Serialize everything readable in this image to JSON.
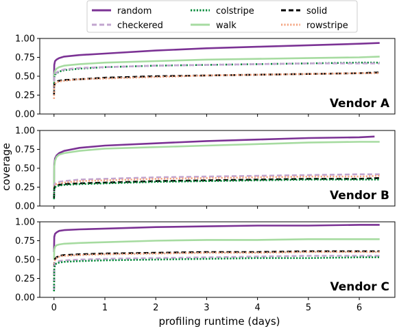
{
  "chart_data": {
    "type": "line",
    "xlabel": "profiling runtime (days)",
    "ylabel": "coverage",
    "xlim": [
      -0.28,
      6.7
    ],
    "ylim": [
      0.0,
      1.0
    ],
    "xticks": [
      0,
      1,
      2,
      3,
      4,
      5,
      6
    ],
    "yticks": [
      0.0,
      0.25,
      0.5,
      0.75,
      1.0
    ],
    "xtick_labels": [
      "0",
      "1",
      "2",
      "3",
      "4",
      "5",
      "6"
    ],
    "ytick_labels": [
      "0.00",
      "0.25",
      "0.50",
      "0.75",
      "1.00"
    ],
    "grid": false,
    "legend": {
      "placement": "top-center",
      "columns": 3,
      "entries": [
        {
          "key": "random",
          "label": "random",
          "color": "#7b3294",
          "dash": "solid"
        },
        {
          "key": "checkered",
          "label": "checkered",
          "color": "#c2a5cf",
          "dash": "dashed"
        },
        {
          "key": "colstripe",
          "label": "colstripe",
          "color": "#008837",
          "dash": "dotted"
        },
        {
          "key": "walk",
          "label": "walk",
          "color": "#a6dba0",
          "dash": "solid"
        },
        {
          "key": "solid",
          "label": "solid",
          "color": "#000000",
          "dash": "dashed"
        },
        {
          "key": "rowstripe",
          "label": "rowstripe",
          "color": "#f4a582",
          "dash": "dotted"
        }
      ]
    },
    "panels": [
      {
        "title": "Vendor A",
        "series": [
          {
            "key": "random",
            "x": [
              0,
              0.005,
              0.02,
              0.05,
              0.1,
              0.2,
              0.5,
              1,
              2,
              3,
              4,
              5,
              6,
              6.4
            ],
            "y": [
              0.45,
              0.65,
              0.7,
              0.72,
              0.74,
              0.76,
              0.78,
              0.8,
              0.84,
              0.87,
              0.89,
              0.91,
              0.93,
              0.94
            ]
          },
          {
            "key": "walk",
            "x": [
              0,
              0.005,
              0.02,
              0.05,
              0.1,
              0.2,
              0.5,
              1,
              2,
              3,
              4,
              5,
              6,
              6.4
            ],
            "y": [
              0.35,
              0.52,
              0.57,
              0.6,
              0.62,
              0.64,
              0.66,
              0.68,
              0.7,
              0.72,
              0.73,
              0.74,
              0.75,
              0.76
            ]
          },
          {
            "key": "colstripe",
            "x": [
              0,
              0.005,
              0.02,
              0.05,
              0.1,
              0.2,
              0.5,
              1,
              2,
              3,
              4,
              5,
              6,
              6.4
            ],
            "y": [
              0.32,
              0.48,
              0.52,
              0.54,
              0.56,
              0.58,
              0.6,
              0.62,
              0.64,
              0.65,
              0.66,
              0.67,
              0.68,
              0.68
            ]
          },
          {
            "key": "checkered",
            "x": [
              0,
              0.005,
              0.02,
              0.05,
              0.1,
              0.2,
              0.5,
              1,
              2,
              3,
              4,
              5,
              6,
              6.4
            ],
            "y": [
              0.33,
              0.49,
              0.53,
              0.55,
              0.57,
              0.59,
              0.61,
              0.62,
              0.64,
              0.65,
              0.66,
              0.67,
              0.67,
              0.67
            ]
          },
          {
            "key": "solid",
            "x": [
              0,
              0.005,
              0.02,
              0.05,
              0.1,
              0.2,
              0.5,
              1,
              2,
              3,
              4,
              5,
              6,
              6.4
            ],
            "y": [
              0.25,
              0.38,
              0.41,
              0.43,
              0.44,
              0.45,
              0.46,
              0.48,
              0.5,
              0.51,
              0.52,
              0.53,
              0.54,
              0.55
            ]
          },
          {
            "key": "rowstripe",
            "x": [
              0,
              0.005,
              0.02,
              0.05,
              0.1,
              0.2,
              0.5,
              1,
              2,
              3,
              4,
              5,
              6,
              6.4
            ],
            "y": [
              0.2,
              0.36,
              0.4,
              0.42,
              0.43,
              0.44,
              0.46,
              0.47,
              0.49,
              0.51,
              0.52,
              0.53,
              0.54,
              0.54
            ]
          }
        ]
      },
      {
        "title": "Vendor B",
        "series": [
          {
            "key": "random",
            "x": [
              0,
              0.005,
              0.02,
              0.05,
              0.1,
              0.2,
              0.5,
              1,
              2,
              3,
              4,
              5,
              6,
              6.3
            ],
            "y": [
              0.2,
              0.55,
              0.63,
              0.67,
              0.7,
              0.73,
              0.77,
              0.8,
              0.83,
              0.86,
              0.88,
              0.9,
              0.91,
              0.92
            ]
          },
          {
            "key": "walk",
            "x": [
              0,
              0.005,
              0.02,
              0.05,
              0.1,
              0.2,
              0.5,
              1,
              2,
              3,
              4,
              5,
              6,
              6.4
            ],
            "y": [
              0.2,
              0.52,
              0.6,
              0.65,
              0.68,
              0.7,
              0.73,
              0.76,
              0.78,
              0.8,
              0.82,
              0.84,
              0.85,
              0.85
            ]
          },
          {
            "key": "checkered",
            "x": [
              0,
              0.005,
              0.02,
              0.05,
              0.1,
              0.2,
              0.5,
              1,
              2,
              3,
              4,
              5,
              6,
              6.4
            ],
            "y": [
              0.15,
              0.27,
              0.3,
              0.31,
              0.32,
              0.33,
              0.35,
              0.36,
              0.38,
              0.39,
              0.4,
              0.41,
              0.42,
              0.42
            ]
          },
          {
            "key": "rowstripe",
            "x": [
              0,
              0.005,
              0.02,
              0.05,
              0.1,
              0.2,
              0.5,
              1,
              2,
              3,
              4,
              5,
              6,
              6.4
            ],
            "y": [
              0.13,
              0.25,
              0.28,
              0.29,
              0.3,
              0.31,
              0.33,
              0.34,
              0.36,
              0.37,
              0.38,
              0.39,
              0.39,
              0.4
            ]
          },
          {
            "key": "solid",
            "x": [
              0,
              0.005,
              0.02,
              0.05,
              0.1,
              0.2,
              0.5,
              1,
              2,
              3,
              4,
              5,
              6,
              6.4
            ],
            "y": [
              0.1,
              0.23,
              0.26,
              0.27,
              0.28,
              0.29,
              0.3,
              0.31,
              0.33,
              0.34,
              0.35,
              0.36,
              0.36,
              0.37
            ]
          },
          {
            "key": "colstripe",
            "x": [
              0,
              0.005,
              0.02,
              0.05,
              0.1,
              0.2,
              0.5,
              1,
              2,
              3,
              4,
              5,
              6,
              6.4
            ],
            "y": [
              0.09,
              0.22,
              0.25,
              0.26,
              0.27,
              0.28,
              0.29,
              0.3,
              0.32,
              0.33,
              0.34,
              0.35,
              0.35,
              0.35
            ]
          }
        ]
      },
      {
        "title": "Vendor C",
        "series": [
          {
            "key": "random",
            "x": [
              0,
              0.005,
              0.02,
              0.05,
              0.1,
              0.2,
              0.5,
              1,
              2,
              3,
              4,
              5,
              6,
              6.4
            ],
            "y": [
              0.6,
              0.8,
              0.84,
              0.86,
              0.88,
              0.89,
              0.9,
              0.91,
              0.93,
              0.94,
              0.95,
              0.95,
              0.96,
              0.96
            ]
          },
          {
            "key": "walk",
            "x": [
              0,
              0.005,
              0.02,
              0.05,
              0.1,
              0.2,
              0.5,
              1,
              2,
              3,
              4,
              5,
              6,
              6.4
            ],
            "y": [
              0.5,
              0.63,
              0.67,
              0.69,
              0.7,
              0.71,
              0.72,
              0.73,
              0.75,
              0.76,
              0.76,
              0.77,
              0.77,
              0.77
            ]
          },
          {
            "key": "solid",
            "x": [
              0,
              0.005,
              0.02,
              0.05,
              0.1,
              0.2,
              0.5,
              1,
              2,
              3,
              4,
              5,
              6,
              6.4
            ],
            "y": [
              0.1,
              0.45,
              0.51,
              0.53,
              0.55,
              0.56,
              0.57,
              0.58,
              0.59,
              0.6,
              0.6,
              0.61,
              0.61,
              0.61
            ]
          },
          {
            "key": "rowstripe",
            "x": [
              0,
              0.005,
              0.02,
              0.05,
              0.1,
              0.2,
              0.5,
              1,
              2,
              3,
              4,
              5,
              6,
              6.4
            ],
            "y": [
              0.12,
              0.44,
              0.5,
              0.52,
              0.54,
              0.55,
              0.56,
              0.57,
              0.58,
              0.59,
              0.59,
              0.6,
              0.6,
              0.6
            ]
          },
          {
            "key": "checkered",
            "x": [
              0,
              0.005,
              0.02,
              0.05,
              0.1,
              0.2,
              0.5,
              1,
              2,
              3,
              4,
              5,
              6,
              6.4
            ],
            "y": [
              0.1,
              0.4,
              0.45,
              0.47,
              0.48,
              0.49,
              0.5,
              0.51,
              0.52,
              0.53,
              0.54,
              0.55,
              0.55,
              0.55
            ]
          },
          {
            "key": "colstripe",
            "x": [
              0,
              0.005,
              0.02,
              0.05,
              0.1,
              0.2,
              0.5,
              1,
              2,
              3,
              4,
              5,
              6,
              6.4
            ],
            "y": [
              0.08,
              0.38,
              0.43,
              0.45,
              0.46,
              0.47,
              0.48,
              0.49,
              0.5,
              0.51,
              0.52,
              0.52,
              0.53,
              0.53
            ]
          }
        ]
      }
    ]
  }
}
